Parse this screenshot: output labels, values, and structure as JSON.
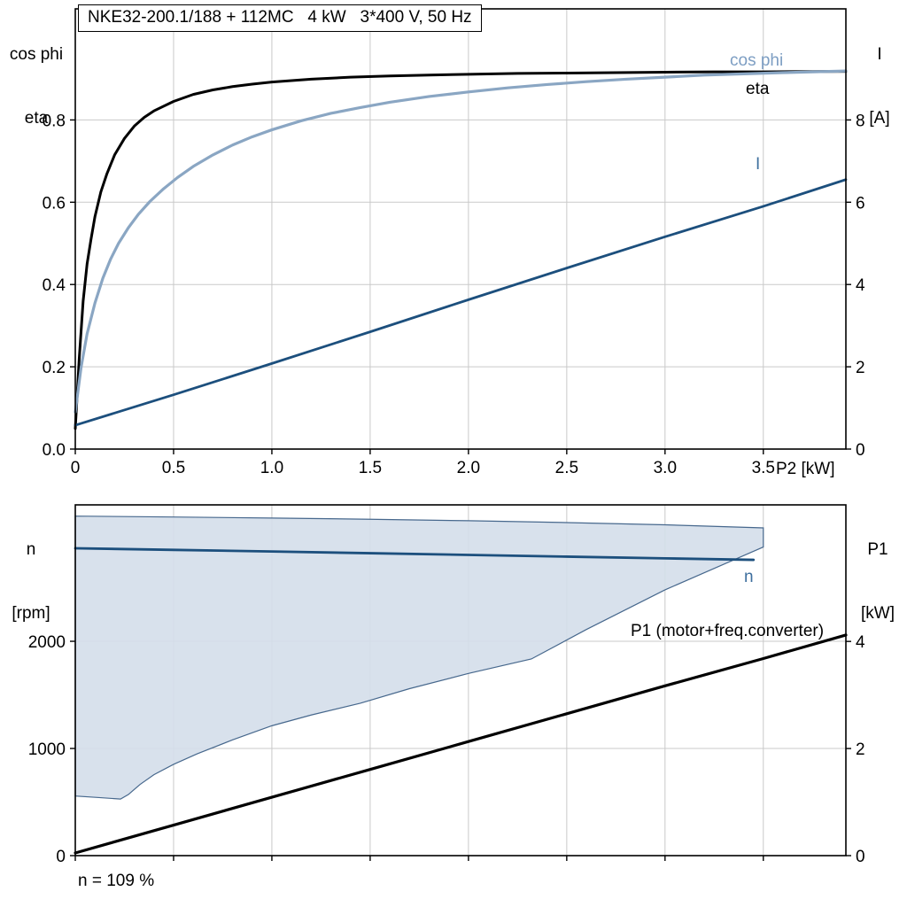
{
  "title": "NKE32-200.1/188 + 112MC   4 kW   3*400 V, 50 Hz",
  "labels": {
    "y_left_top_line1": "cos phi",
    "y_left_top_line2": "eta",
    "y_right_top_line1": "I",
    "y_right_top_line2": "[A]",
    "x_axis_top": "P2 [kW]",
    "y_left_bottom_line1": "n",
    "y_left_bottom_line2": "[rpm]",
    "y_right_bottom_line1": "P1",
    "y_right_bottom_line2": "[kW]",
    "curve_cos_phi": "cos phi",
    "curve_eta": "eta",
    "curve_current": "I",
    "curve_speed": "n",
    "curve_p1": "P1 (motor+freq.converter)",
    "annotation": "n = 109 %"
  },
  "colors": {
    "eta": "#000000",
    "cos_phi": "#8aa6c3",
    "current": "#1c4f7d",
    "speed": "#1c4f7d",
    "p1": "#000000",
    "region_fill": "#d4deea",
    "region_stroke": "#47688d",
    "grid": "#c9c9c9",
    "frame": "#000000",
    "label_light_blue": "#7d9ec3",
    "label_dark_blue": "#3e6f9e"
  },
  "chart_data": [
    {
      "type": "line",
      "panel": "top",
      "title": "NKE32-200.1/188 + 112MC   4 kW   3*400 V, 50 Hz",
      "x_axis": {
        "label": "P2 [kW]",
        "min": 0,
        "max": 3.92,
        "ticks": [
          0,
          0.5,
          1.0,
          1.5,
          2.0,
          2.5,
          3.0,
          3.5
        ],
        "tick_labels": [
          "0",
          "0.5",
          "1.0",
          "1.5",
          "2.0",
          "2.5",
          "3.0",
          "3.5"
        ]
      },
      "y_left": {
        "label": "cos phi / eta",
        "min": 0,
        "max": 1.07,
        "ticks": [
          0.0,
          0.2,
          0.4,
          0.6,
          0.8
        ],
        "tick_labels": [
          "0.0",
          "0.2",
          "0.4",
          "0.6",
          "0.8"
        ]
      },
      "y_right": {
        "label": "I [A]",
        "min": 0,
        "max": 10.7,
        "ticks": [
          0,
          2,
          4,
          6,
          8
        ],
        "tick_labels": [
          "0",
          "2",
          "4",
          "6",
          "8"
        ]
      },
      "series": [
        {
          "name": "eta",
          "axis": "left",
          "color_key": "eta",
          "width": 3,
          "points": [
            [
              0,
              0.05
            ],
            [
              0.02,
              0.22
            ],
            [
              0.04,
              0.36
            ],
            [
              0.06,
              0.45
            ],
            [
              0.08,
              0.51
            ],
            [
              0.1,
              0.565
            ],
            [
              0.13,
              0.625
            ],
            [
              0.16,
              0.668
            ],
            [
              0.2,
              0.715
            ],
            [
              0.25,
              0.755
            ],
            [
              0.3,
              0.785
            ],
            [
              0.35,
              0.806
            ],
            [
              0.4,
              0.822
            ],
            [
              0.5,
              0.845
            ],
            [
              0.6,
              0.862
            ],
            [
              0.7,
              0.873
            ],
            [
              0.8,
              0.881
            ],
            [
              0.9,
              0.887
            ],
            [
              1.0,
              0.892
            ],
            [
              1.2,
              0.899
            ],
            [
              1.4,
              0.904
            ],
            [
              1.6,
              0.907
            ],
            [
              1.8,
              0.909
            ],
            [
              2.0,
              0.911
            ],
            [
              2.25,
              0.913
            ],
            [
              2.5,
              0.914
            ],
            [
              2.75,
              0.915
            ],
            [
              3.0,
              0.916
            ],
            [
              3.25,
              0.917
            ],
            [
              3.5,
              0.917
            ],
            [
              3.92,
              0.918
            ]
          ]
        },
        {
          "name": "cos-phi",
          "axis": "left",
          "color_key": "cos_phi",
          "width": 3.2,
          "points": [
            [
              0,
              0.09
            ],
            [
              0.03,
              0.2
            ],
            [
              0.06,
              0.28
            ],
            [
              0.1,
              0.355
            ],
            [
              0.14,
              0.415
            ],
            [
              0.18,
              0.462
            ],
            [
              0.22,
              0.5
            ],
            [
              0.27,
              0.538
            ],
            [
              0.32,
              0.57
            ],
            [
              0.38,
              0.602
            ],
            [
              0.45,
              0.633
            ],
            [
              0.52,
              0.66
            ],
            [
              0.6,
              0.687
            ],
            [
              0.7,
              0.715
            ],
            [
              0.8,
              0.739
            ],
            [
              0.9,
              0.759
            ],
            [
              1.0,
              0.776
            ],
            [
              1.15,
              0.798
            ],
            [
              1.3,
              0.816
            ],
            [
              1.45,
              0.83
            ],
            [
              1.6,
              0.843
            ],
            [
              1.8,
              0.857
            ],
            [
              2.0,
              0.868
            ],
            [
              2.2,
              0.878
            ],
            [
              2.4,
              0.886
            ],
            [
              2.6,
              0.893
            ],
            [
              2.8,
              0.899
            ],
            [
              3.0,
              0.904
            ],
            [
              3.2,
              0.909
            ],
            [
              3.4,
              0.912
            ],
            [
              3.6,
              0.915
            ],
            [
              3.92,
              0.919
            ]
          ]
        },
        {
          "name": "current",
          "axis": "right",
          "color_key": "current",
          "width": 2.8,
          "points": [
            [
              0,
              0.58
            ],
            [
              0.5,
              1.32
            ],
            [
              1.0,
              2.08
            ],
            [
              1.5,
              2.85
            ],
            [
              2.0,
              3.63
            ],
            [
              2.5,
              4.4
            ],
            [
              3.0,
              5.16
            ],
            [
              3.5,
              5.9
            ],
            [
              3.92,
              6.55
            ]
          ]
        }
      ]
    },
    {
      "type": "line",
      "panel": "bottom",
      "x_axis": {
        "label": "",
        "min": 0,
        "max": 3.92,
        "ticks": [
          0,
          0.5,
          1.0,
          1.5,
          2.0,
          2.5,
          3.0,
          3.5
        ],
        "tick_labels": []
      },
      "y_left": {
        "label": "n [rpm]",
        "min": 0,
        "max": 3273,
        "ticks": [
          0,
          1000,
          2000
        ],
        "tick_labels": [
          "0",
          "1000",
          "2000"
        ]
      },
      "y_right": {
        "label": "P1 [kW]",
        "min": 0,
        "max": 6.55,
        "ticks": [
          0,
          2,
          4
        ],
        "tick_labels": [
          "0",
          "2",
          "4"
        ]
      },
      "region": {
        "name": "speed-operating-range",
        "points": [
          [
            0,
            3168
          ],
          [
            0.5,
            3160
          ],
          [
            1.0,
            3150
          ],
          [
            1.5,
            3139
          ],
          [
            2.0,
            3125
          ],
          [
            2.5,
            3108
          ],
          [
            3.0,
            3087
          ],
          [
            3.5,
            3058
          ],
          [
            3.5,
            2880
          ],
          [
            3.0,
            2480
          ],
          [
            2.6,
            2110
          ],
          [
            2.32,
            1835
          ],
          [
            2.0,
            1700
          ],
          [
            1.7,
            1558
          ],
          [
            1.45,
            1422
          ],
          [
            1.2,
            1312
          ],
          [
            1.0,
            1212
          ],
          [
            0.8,
            1080
          ],
          [
            0.62,
            950
          ],
          [
            0.5,
            852
          ],
          [
            0.4,
            755
          ],
          [
            0.33,
            665
          ],
          [
            0.27,
            570
          ],
          [
            0.23,
            528
          ],
          [
            0.12,
            542
          ],
          [
            0.0,
            556
          ]
        ]
      },
      "series": [
        {
          "name": "speed",
          "axis": "left",
          "color_key": "speed",
          "width": 2.8,
          "points": [
            [
              0,
              2868
            ],
            [
              0.5,
              2853
            ],
            [
              1.0,
              2838
            ],
            [
              1.5,
              2822
            ],
            [
              2.0,
              2806
            ],
            [
              2.5,
              2790
            ],
            [
              3.0,
              2774
            ],
            [
              3.45,
              2760
            ]
          ]
        },
        {
          "name": "p1",
          "axis": "right",
          "color_key": "p1",
          "width": 3.2,
          "points": [
            [
              0,
              0.05
            ],
            [
              0.5,
              0.57
            ],
            [
              1.0,
              1.09
            ],
            [
              1.5,
              1.61
            ],
            [
              2.0,
              2.13
            ],
            [
              2.5,
              2.65
            ],
            [
              3.0,
              3.17
            ],
            [
              3.5,
              3.68
            ],
            [
              3.92,
              4.12
            ]
          ]
        }
      ]
    }
  ]
}
